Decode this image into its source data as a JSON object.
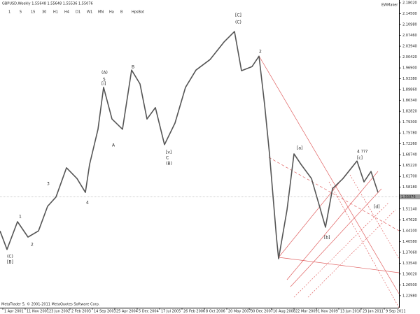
{
  "chart_data": {
    "type": "line",
    "title": "GBPUSD,Weekly  1.55648 1.55648 1.55536 1.55076",
    "toolbar": [
      "1",
      "5",
      "15",
      "30",
      "H1",
      "H4",
      "D1",
      "W1",
      "MN",
      "Ha",
      "B",
      "HpsBot"
    ],
    "watermark": "EWMaker",
    "copyright": "MetaTrader 5, © 2001-2011 MetaQuotes Software Corp.",
    "color": "#555555",
    "x": [
      -4,
      6,
      21,
      36,
      51,
      64,
      76,
      91,
      106,
      118,
      124,
      136,
      144,
      156,
      171,
      184,
      196,
      206,
      218,
      231,
      246,
      261,
      276,
      296,
      316,
      331,
      341,
      356,
      366,
      374,
      381,
      391,
      394,
      406,
      416,
      426,
      441,
      454,
      461,
      471,
      486,
      506,
      516,
      526,
      536
    ],
    "values": [
      1.44,
      1.38,
      1.47,
      1.42,
      1.44,
      1.52,
      1.55,
      1.645,
      1.61,
      1.565,
      1.656,
      1.77,
      1.906,
      1.803,
      1.77,
      1.962,
      1.917,
      1.803,
      1.84,
      1.72,
      1.79,
      1.906,
      1.962,
      1.996,
      2.053,
      2.087,
      1.96,
      1.973,
      2.007,
      1.85,
      1.69,
      1.418,
      1.35,
      1.508,
      1.69,
      1.656,
      1.61,
      1.508,
      1.452,
      1.577,
      1.61,
      1.667,
      1.599,
      1.633,
      1.565
    ],
    "current_price": {
      "value": 1.55076,
      "label": "1.55076"
    },
    "current_color": "#999999",
    "xlim": [
      -4,
      566
    ],
    "xticks": [
      {
        "value": 0,
        "label": "1 Apr 2001"
      },
      {
        "value": 32,
        "label": "11 Nov 2001"
      },
      {
        "value": 64,
        "label": "23 Jun 2002"
      },
      {
        "value": 96,
        "label": "2 Feb 2003"
      },
      {
        "value": 128,
        "label": "14 Sep 2003"
      },
      {
        "value": 160,
        "label": "25 Apr 2004"
      },
      {
        "value": 192,
        "label": "5 Dec 2004"
      },
      {
        "value": 224,
        "label": "17 Jul 2005"
      },
      {
        "value": 256,
        "label": "26 Feb 2006"
      },
      {
        "value": 288,
        "label": "8 Oct 2006"
      },
      {
        "value": 320,
        "label": "20 May 2007"
      },
      {
        "value": 352,
        "label": "30 Dec 2007"
      },
      {
        "value": 384,
        "label": "10 Aug 2008"
      },
      {
        "value": 416,
        "label": "22 Mar 2009"
      },
      {
        "value": 448,
        "label": "1 Nov 2009"
      },
      {
        "value": 480,
        "label": "13 Jun 2010"
      },
      {
        "value": 512,
        "label": "23 Jan 2011"
      },
      {
        "value": 545,
        "label": "9 Sep 2011"
      }
    ],
    "ylim": [
      1.1909,
      2.1893
    ],
    "yticks": [
      {
        "value": 2.1802,
        "label": "2.18020"
      },
      {
        "value": 2.145,
        "label": "2.14500"
      },
      {
        "value": 2.1098,
        "label": "2.10980"
      },
      {
        "value": 2.0746,
        "label": "2.07460"
      },
      {
        "value": 2.0394,
        "label": "2.03940"
      },
      {
        "value": 2.0042,
        "label": "2.00420"
      },
      {
        "value": 1.969,
        "label": "1.96900"
      },
      {
        "value": 1.9338,
        "label": "1.93380"
      },
      {
        "value": 1.8986,
        "label": "1.89860"
      },
      {
        "value": 1.8634,
        "label": "1.86340"
      },
      {
        "value": 1.8282,
        "label": "1.82820"
      },
      {
        "value": 1.793,
        "label": "1.79300"
      },
      {
        "value": 1.7578,
        "label": "1.75780"
      },
      {
        "value": 1.7226,
        "label": "1.72260"
      },
      {
        "value": 1.6874,
        "label": "1.68740"
      },
      {
        "value": 1.6522,
        "label": "1.65220"
      },
      {
        "value": 1.617,
        "label": "1.61700"
      },
      {
        "value": 1.5818,
        "label": "1.58180"
      },
      {
        "value": 1.5466,
        "label": "1.54660"
      },
      {
        "value": 1.5114,
        "label": "1.51140"
      },
      {
        "value": 1.4762,
        "label": "1.47620"
      },
      {
        "value": 1.441,
        "label": "1.44100"
      },
      {
        "value": 1.4058,
        "label": "1.40580"
      },
      {
        "value": 1.3706,
        "label": "1.37060"
      },
      {
        "value": 1.3354,
        "label": "1.33540"
      },
      {
        "value": 1.3002,
        "label": "1.30020"
      },
      {
        "value": 1.265,
        "label": "1.26500"
      },
      {
        "value": 1.2298,
        "label": "1.22980"
      }
    ],
    "annotations": [
      {
        "text": "(C)",
        "x": 6,
        "y": 1.3566,
        "color": "#3333aa"
      },
      {
        "text": "[B]",
        "x": 6,
        "y": 1.3384,
        "color": "#3333aa"
      },
      {
        "text": "1",
        "x": 23,
        "y": 1.486,
        "color": "#8b5a2b"
      },
      {
        "text": "2",
        "x": 40,
        "y": 1.395,
        "color": "#8b5a2b"
      },
      {
        "text": "3",
        "x": 63,
        "y": 1.5926,
        "color": "#cc3333"
      },
      {
        "text": "4",
        "x": 119,
        "y": 1.5313,
        "color": "#cc3333"
      },
      {
        "text": "(A)",
        "x": 141,
        "y": 1.9533,
        "color": "#3333aa"
      },
      {
        "text": "5",
        "x": 143,
        "y": 1.9306,
        "color": "#8b5a2b"
      },
      {
        "text": "[i]",
        "x": 141,
        "y": 1.917,
        "color": "#339933"
      },
      {
        "text": "A",
        "x": 156,
        "y": 1.7173,
        "color": "#cc3333"
      },
      {
        "text": "B",
        "x": 184,
        "y": 1.9715,
        "color": "#cc3333"
      },
      {
        "text": "[v]",
        "x": 233,
        "y": 1.6947,
        "color": "#339933"
      },
      {
        "text": "C",
        "x": 233,
        "y": 1.6765,
        "color": "#cc3333"
      },
      {
        "text": "(B)",
        "x": 233,
        "y": 1.6584,
        "color": "#3333aa"
      },
      {
        "text": "[C]",
        "x": 332,
        "y": 2.1394,
        "color": "#339933"
      },
      {
        "text": "(C)",
        "x": 332,
        "y": 2.1167,
        "color": "#3333aa"
      },
      {
        "text": "2",
        "x": 366,
        "y": 2.0214,
        "color": "#cc3333"
      },
      {
        "text": "[a]",
        "x": 420,
        "y": 1.7083,
        "color": "#339933"
      },
      {
        "text": "[b]",
        "x": 459,
        "y": 1.4178,
        "color": "#339933"
      },
      {
        "text": "4 ???",
        "x": 506,
        "y": 1.6969,
        "color": "#cc3333"
      },
      {
        "text": "[c]",
        "x": 506,
        "y": 1.6765,
        "color": "#339933"
      },
      {
        "text": "[d]",
        "x": 530,
        "y": 1.5177,
        "color": "#339933"
      }
    ]
  }
}
